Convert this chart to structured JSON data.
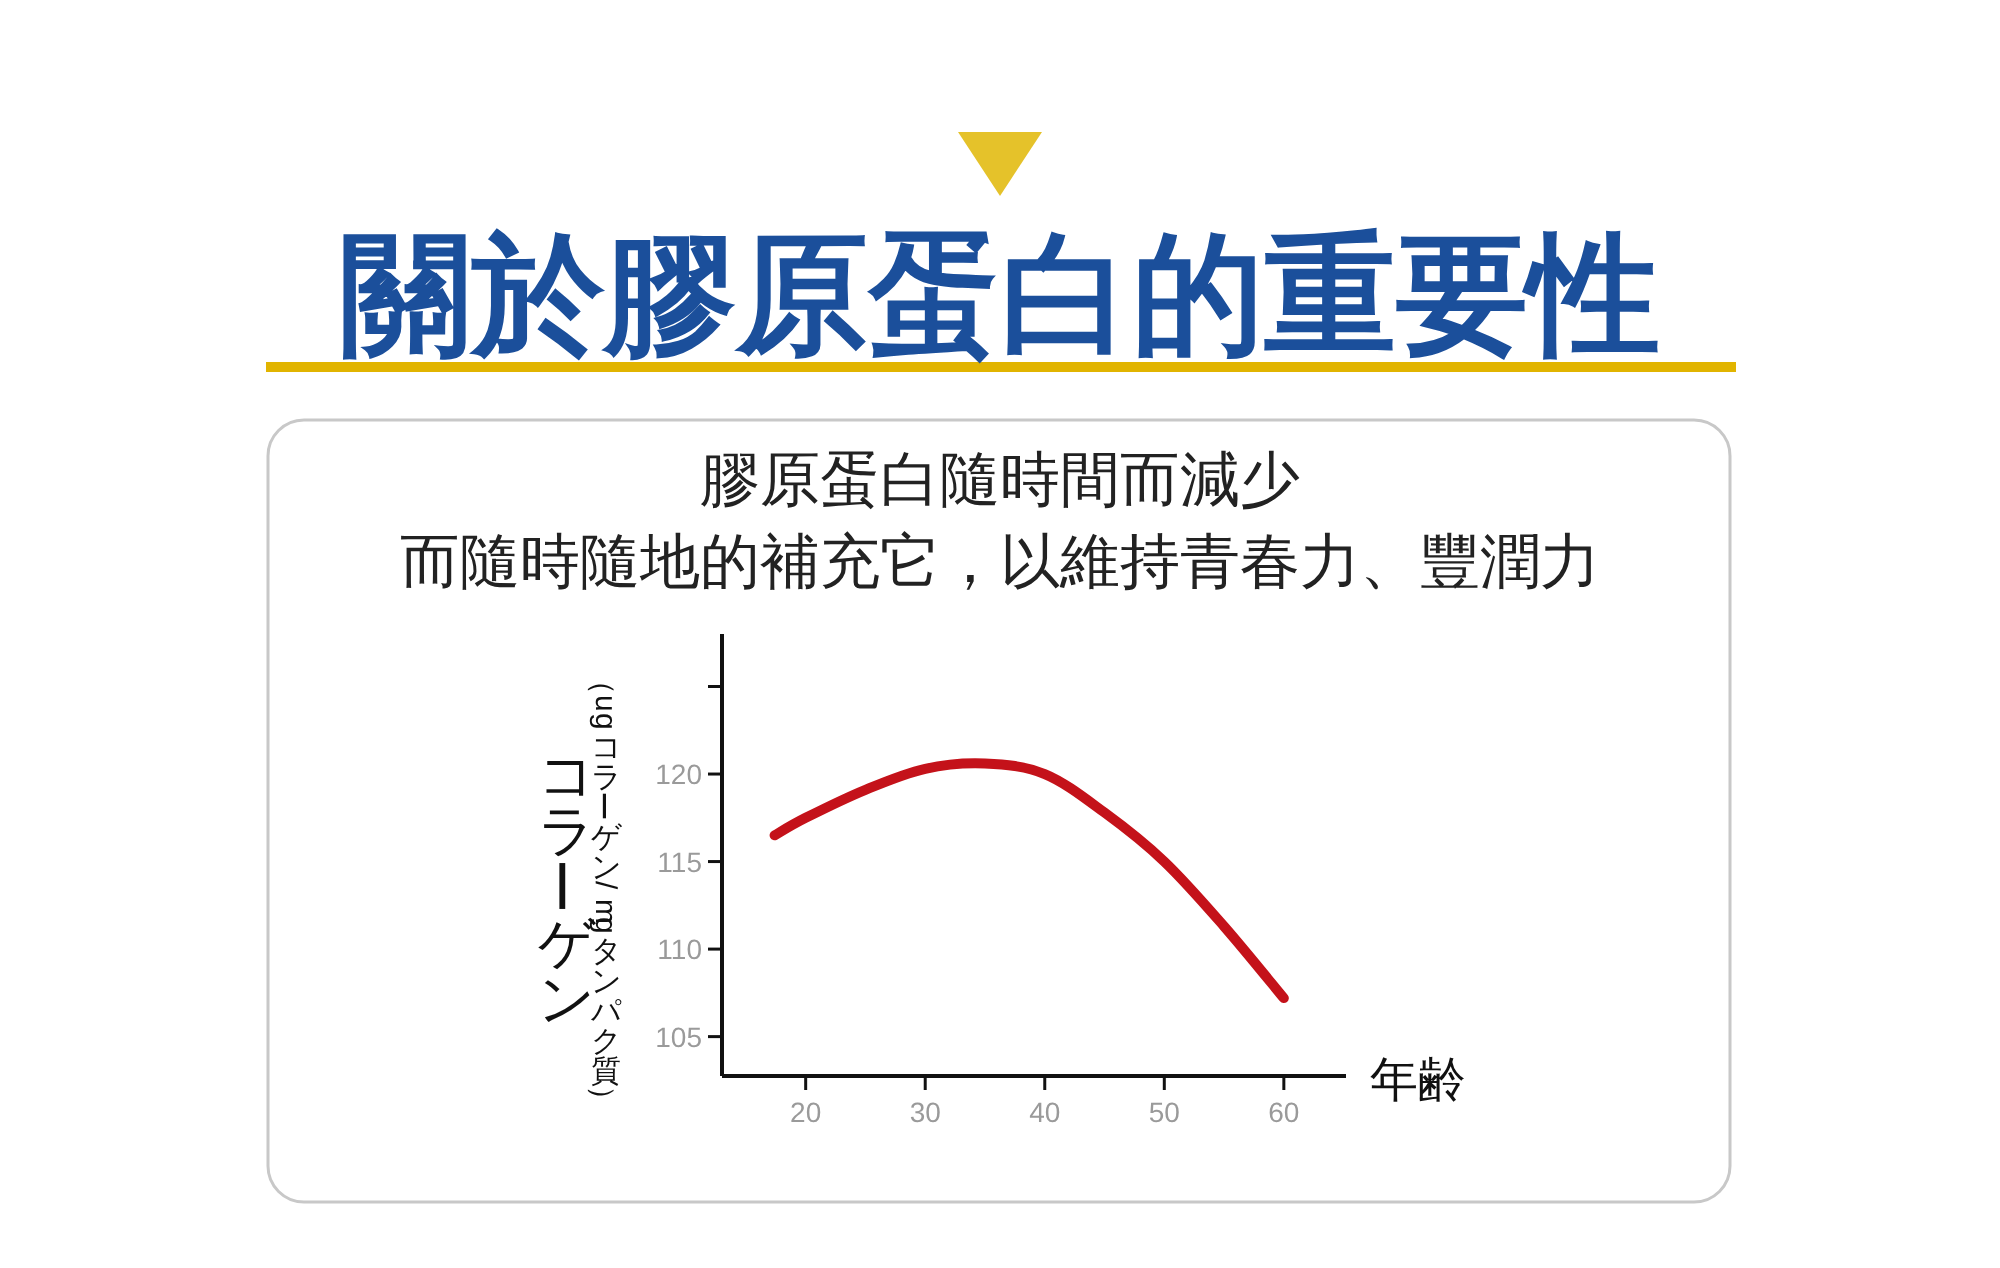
{
  "chart_data": {
    "type": "line",
    "title": "關於膠原蛋白的重要性",
    "subtitle": "膠原蛋白隨時間而減少",
    "annotations": [
      "而隨時隨地的補充它，以維持青春力、豐潤力",
      "（ugコラーゲン/mgタンパク質）"
    ],
    "xlabel": "年齢",
    "ylabel": "コラーゲン",
    "series": [
      {
        "color": "#c4121a",
        "x": [
          17.4,
          20,
          25,
          30,
          35,
          40,
          45,
          50,
          55,
          60
        ],
        "values": [
          116.5,
          117.5,
          119.1,
          120.3,
          120.6,
          120.0,
          117.8,
          115.0,
          111.3,
          107.2
        ]
      }
    ],
    "xlim": [
      13,
      65.2
    ],
    "ylim": [
      102.75,
      128
    ],
    "xticks": [
      20,
      30,
      40,
      50,
      60
    ],
    "yticks": [
      105,
      110,
      115,
      120,
      {
        "value": 125,
        "label": null
      }
    ],
    "marker": "none",
    "line_style": "solid"
  }
}
